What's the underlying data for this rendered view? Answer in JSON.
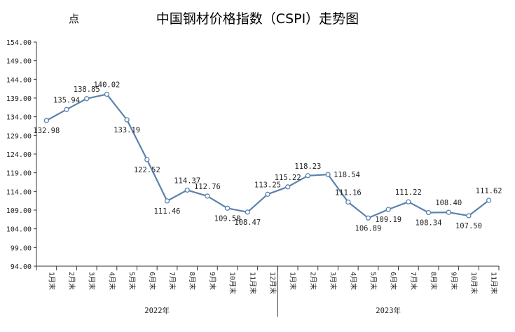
{
  "chart_data": {
    "type": "line",
    "title": "中国钢材价格指数（CSPI）走势图",
    "ylabel": "点",
    "ylim": [
      94,
      154
    ],
    "yticks": [
      "154.00",
      "149.00",
      "144.00",
      "139.00",
      "134.00",
      "129.00",
      "124.00",
      "119.00",
      "114.00",
      "109.00",
      "104.00",
      "99.00",
      "94.00"
    ],
    "ytick_values": [
      154,
      149,
      144,
      139,
      134,
      129,
      124,
      119,
      114,
      109,
      104,
      99,
      94
    ],
    "categories": [
      "1月末",
      "2月末",
      "3月末",
      "4月末",
      "5月末",
      "6月末",
      "7月末",
      "8月末",
      "9月末",
      "10月末",
      "11月末",
      "12月末",
      "1月末",
      "2月末",
      "3月末",
      "4月末",
      "5月末",
      "6月末",
      "7月末",
      "8月末",
      "9月末",
      "10月末",
      "11月末"
    ],
    "groups": [
      {
        "label": "2022年",
        "count": 12
      },
      {
        "label": "2023年",
        "count": 11
      }
    ],
    "series": [
      {
        "name": "CSPI",
        "color": "#5b82ad",
        "values": [
          132.98,
          135.94,
          138.85,
          140.02,
          133.19,
          122.52,
          111.46,
          114.37,
          112.76,
          109.5,
          108.47,
          113.25,
          115.22,
          118.23,
          118.54,
          111.16,
          106.89,
          109.19,
          111.22,
          108.34,
          108.4,
          107.5,
          111.62
        ],
        "labels": [
          "132.98",
          "135.94",
          "138.85",
          "140.02",
          "133.19",
          "122.52",
          "111.46",
          "114.37",
          "112.76",
          "109.50",
          "108.47",
          "113.25",
          "115.22",
          "118.23",
          "118.54",
          "111.16",
          "106.89",
          "109.19",
          "111.22",
          "108.34",
          "108.40",
          "107.50",
          "111.62"
        ],
        "label_pos": [
          "below",
          "above",
          "above",
          "above",
          "below",
          "below",
          "below",
          "above",
          "above",
          "below",
          "below",
          "above",
          "above",
          "above",
          "right",
          "above",
          "below",
          "below",
          "above",
          "below",
          "above",
          "below",
          "above"
        ]
      }
    ]
  }
}
